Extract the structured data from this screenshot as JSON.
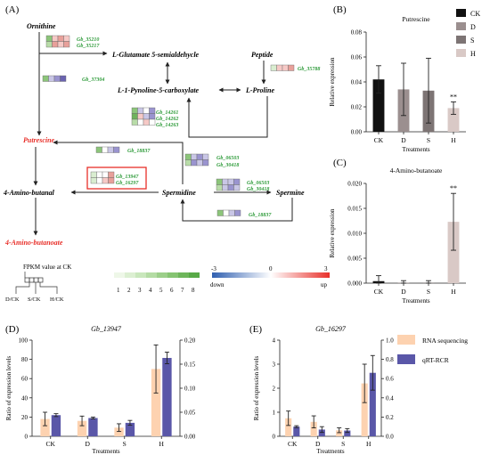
{
  "panels": {
    "A": "(A)",
    "B": "(B)",
    "C": "(C)",
    "D": "(D)",
    "E": "(E)"
  },
  "pathway": {
    "nodes": {
      "ornithine": "Ornithine",
      "glutamate": "L-Glutamate 5-semialdehycle",
      "peptide": "Peptide",
      "pyrroline": "L-1-Pynoline-5-carboxylate",
      "proline": "L-Proline",
      "putrescine": "Putrescine",
      "aminobutanal": "4-Amino-butanal",
      "spermidine": "Spermidine",
      "spermine": "Spermine",
      "aminobutanoate": "4-Amino-butanoate"
    },
    "genes": {
      "g1a": "Gb_35210",
      "g1b": "Gb_35217",
      "g2": "Gb_35788",
      "g3": "Gb_37304",
      "g4a": "Gb_14261",
      "g4b": "Gb_14262",
      "g4c": "Gb_14263",
      "g5": "Gb_18837",
      "g6a": "Gb_06503",
      "g6b": "Gb_30418",
      "g7a": "Gb_13947",
      "g7b": "Gb_16297",
      "g8a": "Gb_06503",
      "g8b": "Gb_30418",
      "g9": "Gb_18837"
    },
    "legend": {
      "fpkm_label": "FPKM value at CK",
      "ratio_labels": [
        "D/CK",
        "S/CK",
        "H/CK"
      ],
      "scale_numbers": [
        "1",
        "2",
        "3",
        "4",
        "5",
        "6",
        "7",
        "8"
      ],
      "div_min": "-3",
      "div_mid": "0",
      "div_max": "3",
      "down": "down",
      "up": "up"
    },
    "colors": {
      "highlight": "#e8302a",
      "gene": "#2e9b3a",
      "up": "#e8302a",
      "down": "#2f5fb0",
      "green_dark": "#4a9e3a"
    }
  },
  "chart_data": [
    {
      "panel": "B",
      "type": "bar",
      "title": "Putrescine",
      "categories": [
        "CK",
        "D",
        "S",
        "H"
      ],
      "values": [
        0.042,
        0.034,
        0.033,
        0.019
      ],
      "errors": [
        0.011,
        0.021,
        0.026,
        0.005
      ],
      "significance": [
        "",
        "",
        "",
        "**"
      ],
      "colors": [
        "#111111",
        "#9b8f8f",
        "#7d7474",
        "#d9c9c6"
      ],
      "xlabel": "Treatments",
      "ylabel": "Relative expression",
      "ylim": [
        0,
        0.08
      ],
      "yticks": [
        "0.00",
        "0.02",
        "0.04",
        "0.06",
        "0.08"
      ],
      "legend": [
        "CK",
        "D",
        "S",
        "H"
      ],
      "legend_position": "right"
    },
    {
      "panel": "C",
      "type": "bar",
      "title": "4-Amino-butanoate",
      "categories": [
        "CK",
        "D",
        "S",
        "H"
      ],
      "values": [
        0.0004,
        0.0001,
        0.0001,
        0.0123
      ],
      "errors": [
        0.0011,
        0.0004,
        0.0004,
        0.0057
      ],
      "significance": [
        "",
        "",
        "",
        "**"
      ],
      "colors": [
        "#111111",
        "#9b8f8f",
        "#7d7474",
        "#d9c9c6"
      ],
      "xlabel": "Treatments",
      "ylabel": "Relative expression",
      "ylim": [
        0,
        0.02
      ],
      "yticks": [
        "0.000",
        "0.005",
        "0.010",
        "0.015",
        "0.020"
      ]
    },
    {
      "panel": "D",
      "type": "bar",
      "title": "Gb_13947",
      "categories": [
        "CK",
        "D",
        "S",
        "H"
      ],
      "series": [
        {
          "name": "RNA sequencing",
          "axis": "left",
          "color": "#fdd2b0",
          "values": [
            18,
            16,
            9,
            70
          ],
          "errors": [
            7,
            5,
            4,
            25
          ]
        },
        {
          "name": "qRT-RCR",
          "axis": "right",
          "color": "#5a57a8",
          "values": [
            0.044,
            0.038,
            0.028,
            0.163
          ],
          "errors": [
            0.003,
            0.002,
            0.005,
            0.012
          ]
        }
      ],
      "xlabel": "Treatments",
      "ylabel": "Ratio of expression levels",
      "ylim_left": [
        0,
        100
      ],
      "ylim_right": [
        0,
        0.2
      ],
      "yticks_left": [
        "0",
        "20",
        "40",
        "60",
        "80",
        "100"
      ],
      "yticks_right": [
        "0.00",
        "0.05",
        "0.10",
        "0.15",
        "0.20"
      ]
    },
    {
      "panel": "E",
      "type": "bar",
      "title": "Gb_16297",
      "categories": [
        "CK",
        "D",
        "S",
        "H"
      ],
      "series": [
        {
          "name": "RNA sequencing",
          "axis": "left",
          "color": "#fdd2b0",
          "values": [
            0.75,
            0.6,
            0.25,
            2.2
          ],
          "errors": [
            0.3,
            0.25,
            0.1,
            0.8
          ]
        },
        {
          "name": "qRT-RCR",
          "axis": "right",
          "color": "#5a57a8",
          "values": [
            0.1,
            0.07,
            0.06,
            0.66
          ],
          "errors": [
            0.01,
            0.03,
            0.02,
            0.18
          ]
        }
      ],
      "xlabel": "Treatments",
      "ylabel": "Ratio of expression levels",
      "ylim_left": [
        0,
        4
      ],
      "ylim_right": [
        0,
        1.0
      ],
      "yticks_left": [
        "0",
        "1",
        "2",
        "3",
        "4"
      ],
      "yticks_right": [
        "0.0",
        "0.2",
        "0.4",
        "0.6",
        "0.8",
        "1.0"
      ],
      "legend": [
        "RNA sequencing",
        "qRT-RCR"
      ],
      "legend_position": "top-right"
    }
  ]
}
